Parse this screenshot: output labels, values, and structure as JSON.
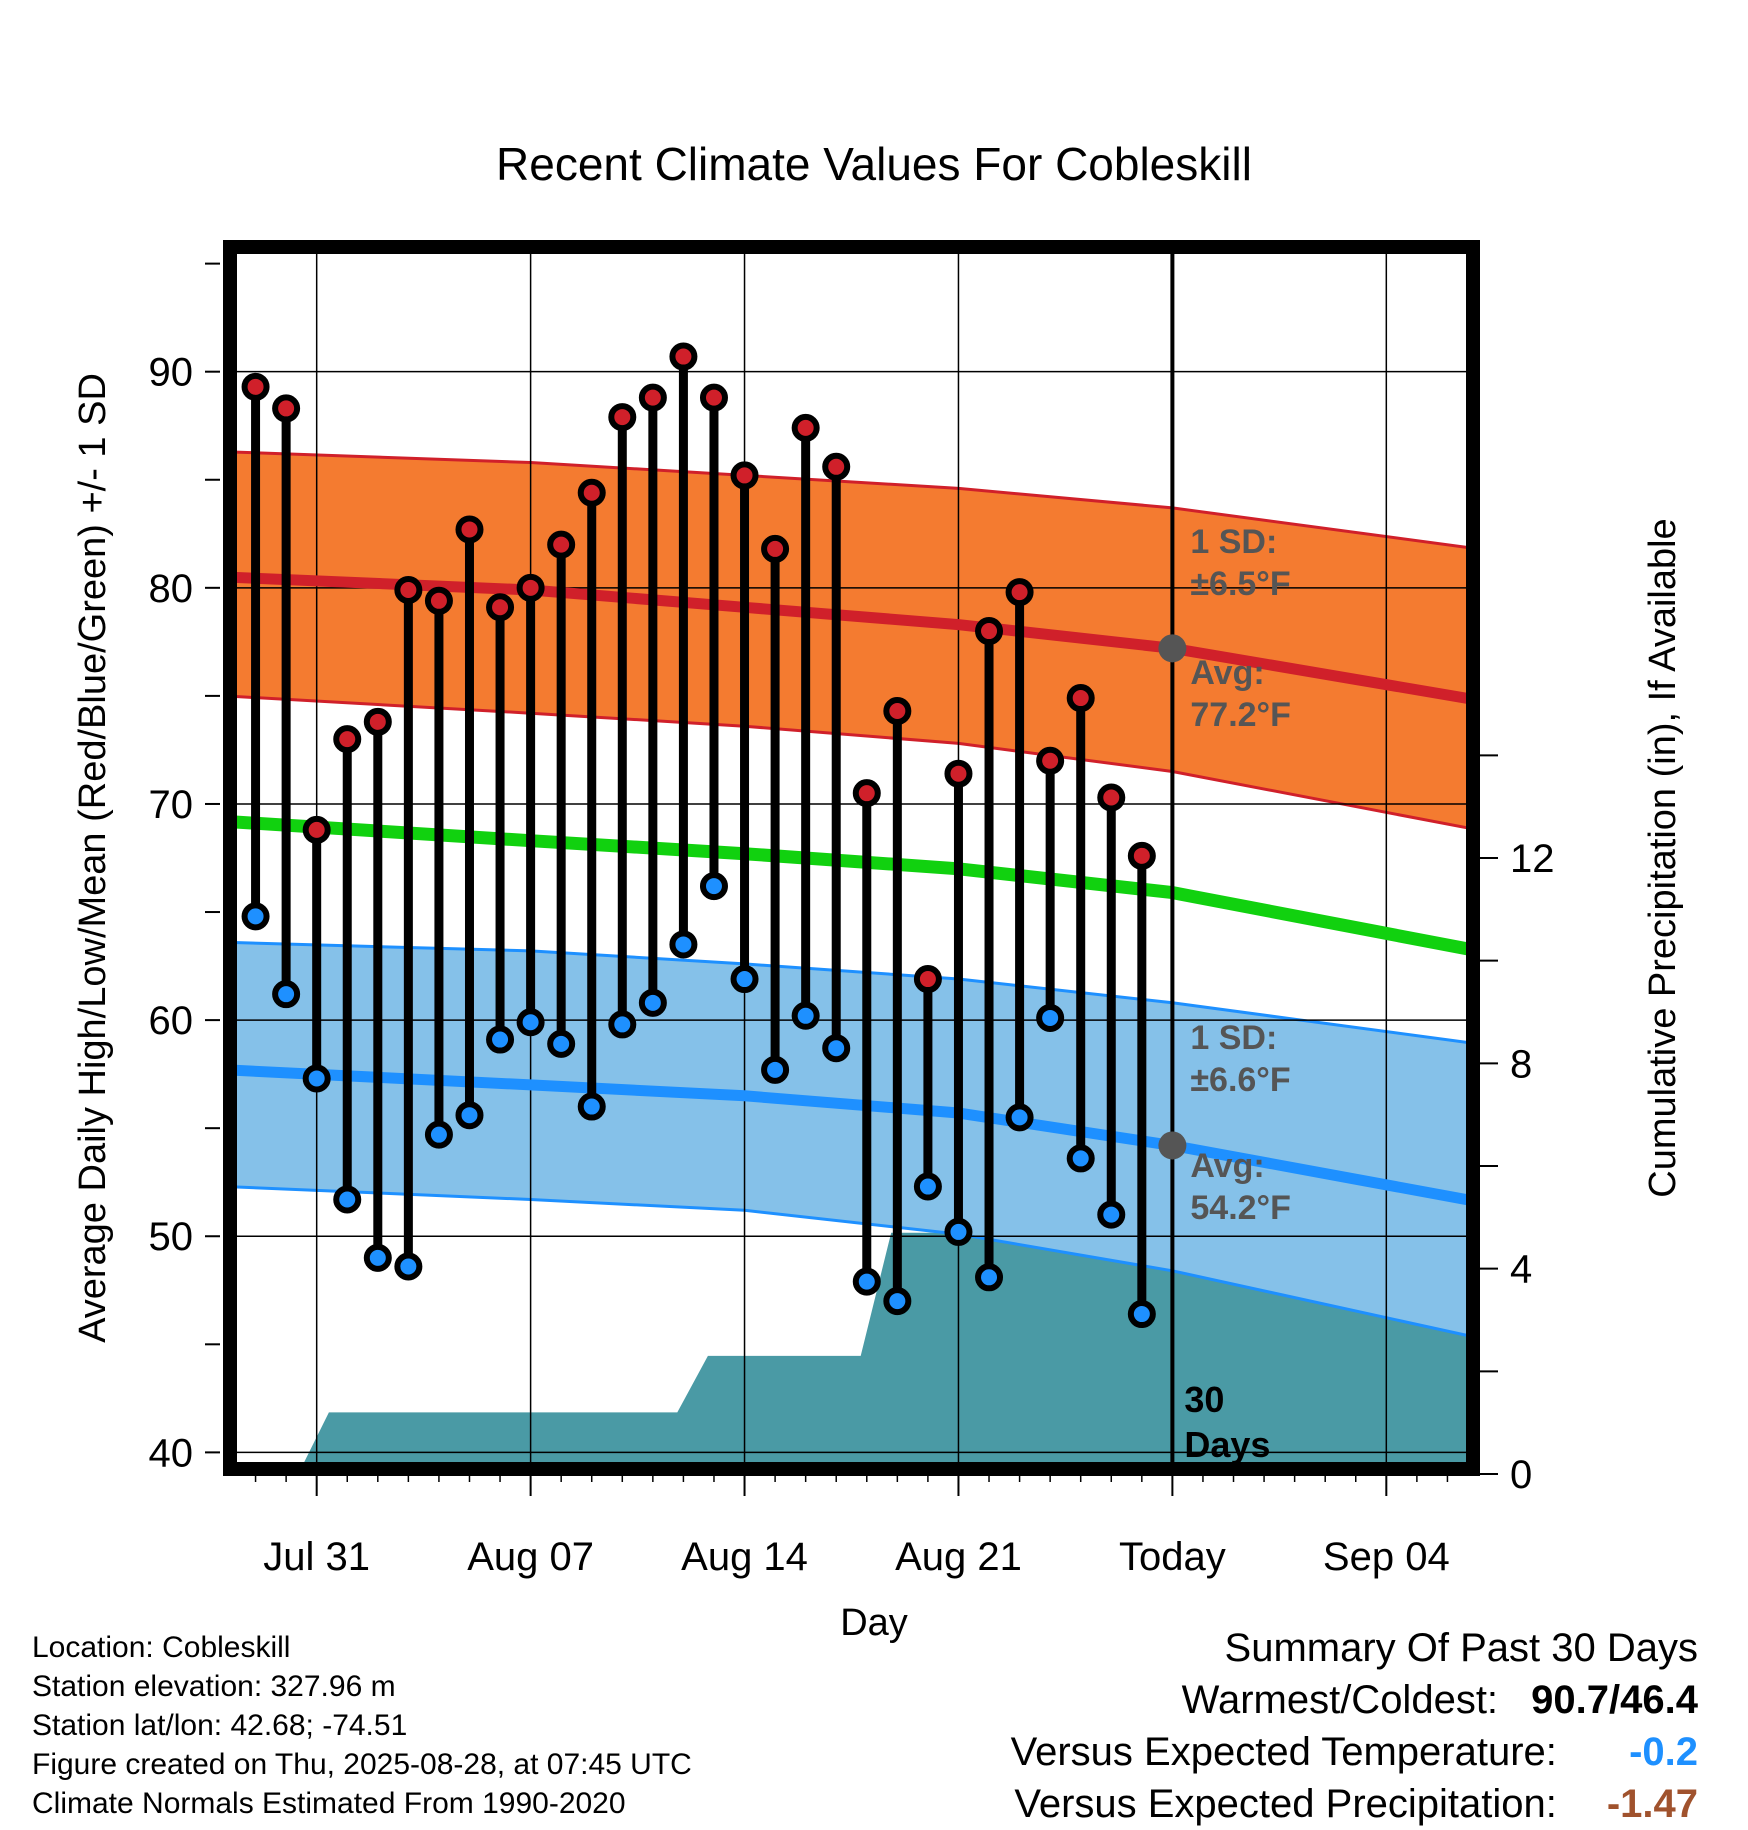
{
  "chart_data": {
    "type": "line",
    "title": "Recent Climate Values For Cobleskill",
    "xlabel": "Day",
    "ylabel_left": "Average Daily High/Low/Mean (Red/Blue/Green) +/- 1 SD",
    "ylabel_right": "Cumulative Precipitation (in), If Available",
    "x_ticks": [
      {
        "day": 0,
        "label": "Jul 31"
      },
      {
        "day": 7,
        "label": "Aug 07"
      },
      {
        "day": 14,
        "label": "Aug 14"
      },
      {
        "day": 21,
        "label": "Aug 21"
      },
      {
        "day": 28,
        "label": "Today"
      },
      {
        "day": 35,
        "label": "Sep 04"
      }
    ],
    "xlim": [
      -3,
      38
    ],
    "ylim_left": [
      39,
      96
    ],
    "y_ticks_left": [
      40,
      50,
      60,
      70,
      80,
      90
    ],
    "ylim_right": [
      0,
      24
    ],
    "y_ticks_right": [
      0,
      4,
      8,
      12
    ],
    "today": 28,
    "daily": [
      {
        "day": -2,
        "high": 89.3,
        "low": 64.8
      },
      {
        "day": -1,
        "high": 88.3,
        "low": 61.2
      },
      {
        "day": 0,
        "high": 68.8,
        "low": 57.3
      },
      {
        "day": 1,
        "high": 73.0,
        "low": 51.7
      },
      {
        "day": 2,
        "high": 73.8,
        "low": 49.0
      },
      {
        "day": 3,
        "high": 79.9,
        "low": 48.6
      },
      {
        "day": 4,
        "high": 79.4,
        "low": 54.7
      },
      {
        "day": 5,
        "high": 82.7,
        "low": 55.6
      },
      {
        "day": 6,
        "high": 79.1,
        "low": 59.1
      },
      {
        "day": 7,
        "high": 80.0,
        "low": 59.9
      },
      {
        "day": 8,
        "high": 82.0,
        "low": 58.9
      },
      {
        "day": 9,
        "high": 84.4,
        "low": 56.0
      },
      {
        "day": 10,
        "high": 87.9,
        "low": 59.8
      },
      {
        "day": 11,
        "high": 88.8,
        "low": 60.8
      },
      {
        "day": 12,
        "high": 90.7,
        "low": 63.5
      },
      {
        "day": 13,
        "high": 88.8,
        "low": 66.2
      },
      {
        "day": 14,
        "high": 85.2,
        "low": 61.9
      },
      {
        "day": 15,
        "high": 81.8,
        "low": 57.7
      },
      {
        "day": 16,
        "high": 87.4,
        "low": 60.2
      },
      {
        "day": 17,
        "high": 85.6,
        "low": 58.7
      },
      {
        "day": 18,
        "high": 70.5,
        "low": 47.9
      },
      {
        "day": 19,
        "high": 74.3,
        "low": 47.0
      },
      {
        "day": 20,
        "high": 61.9,
        "low": 52.3
      },
      {
        "day": 21,
        "high": 71.4,
        "low": 50.2
      },
      {
        "day": 22,
        "high": 78.0,
        "low": 48.1
      },
      {
        "day": 23,
        "high": 79.8,
        "low": 55.5
      },
      {
        "day": 24,
        "high": 72.0,
        "low": 60.1
      },
      {
        "day": 25,
        "high": 74.9,
        "low": 53.6
      },
      {
        "day": 26,
        "high": 70.3,
        "low": 51.0
      },
      {
        "day": 27,
        "high": 67.6,
        "low": 46.4
      }
    ],
    "normals": {
      "days": [
        -3,
        7,
        14,
        21,
        28,
        38
      ],
      "high_mean": [
        80.5,
        79.9,
        79.1,
        78.3,
        77.2,
        74.8
      ],
      "high_upper": [
        86.3,
        85.8,
        85.2,
        84.6,
        83.7,
        81.8
      ],
      "high_lower": [
        75.0,
        74.2,
        73.6,
        72.8,
        71.5,
        68.8
      ],
      "mean": [
        69.2,
        68.3,
        67.7,
        67.0,
        65.9,
        63.2
      ],
      "low_mean": [
        57.7,
        57.0,
        56.5,
        55.7,
        54.2,
        51.6
      ],
      "low_upper": [
        63.6,
        63.2,
        62.6,
        61.9,
        60.8,
        58.9
      ],
      "low_lower": [
        52.3,
        51.7,
        51.2,
        50.1,
        48.4,
        45.3
      ]
    },
    "precip_cumulative": {
      "x": [
        -3,
        -0.6,
        0.4,
        11.8,
        12.8,
        17.8,
        18.8,
        21,
        22,
        24.2,
        25.2,
        38
      ],
      "y": [
        0,
        0,
        1.2,
        1.2,
        2.3,
        2.3,
        4.7,
        4.7,
        4.7,
        4.9,
        5.0,
        5.0
      ]
    },
    "colors": {
      "high_band": "#f47b30",
      "high_line": "#d0202a",
      "low_band": "#85c1e9",
      "low_line": "#1e90ff",
      "mean_line": "#11d10f",
      "precip": "#4a9aa5",
      "high_dot": "#d0202a",
      "low_dot": "#1e90ff"
    },
    "annotations": {
      "high_sd_line1": "1 SD:",
      "high_sd_line2": "±6.5°F",
      "high_avg_line1": "Avg:",
      "high_avg_line2": "77.2°F",
      "low_sd_line1": "1 SD:",
      "low_sd_line2": "±6.6°F",
      "low_avg_line1": "Avg:",
      "low_avg_line2": "54.2°F",
      "days_line1": "30",
      "days_line2": "Days",
      "high_avg_value": 77.2,
      "low_avg_value": 54.2
    }
  },
  "footer": {
    "location": "Location: Cobleskill",
    "elevation": "Station elevation: 327.96 m",
    "latlon": "Station lat/lon: 42.68; -74.51",
    "created": "Figure created on Thu, 2025-08-28, at 07:45 UTC",
    "normals": "Climate Normals Estimated From 1990-2020"
  },
  "summary": {
    "title": "Summary Of Past 30 Days",
    "warmest_label": "Warmest/Coldest:",
    "warmest_value": "90.7/46.4",
    "temp_label": "Versus Expected Temperature:",
    "temp_value": "-0.2",
    "temp_color": "#1e90ff",
    "precip_label": "Versus Expected Precipitation:",
    "precip_value": "-1.47",
    "precip_color": "#a0522d"
  }
}
